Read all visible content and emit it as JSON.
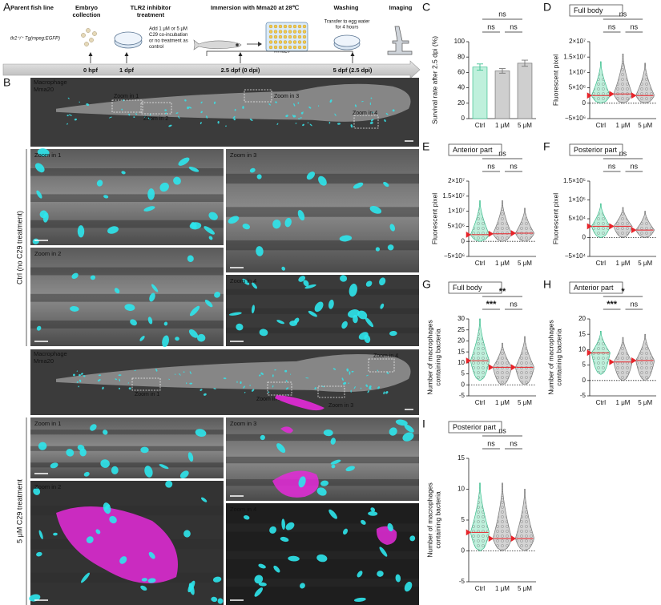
{
  "panel_a": {
    "letter": "A",
    "steps": [
      {
        "title": [
          "Parent fish line"
        ],
        "note": [
          "tlr2⁺/⁺ Tg(mpeg:EGFP)"
        ]
      },
      {
        "title": [
          "Embryo",
          "collection"
        ]
      },
      {
        "title": [
          "TLR2 inhibitor",
          "treatment"
        ],
        "note": [
          "Add 1 μM or 5 μM",
          "C29 co-incubation",
          "or no treatment as",
          "control"
        ]
      },
      {
        "title": [
          "Immersion with Mma20 at 28℃"
        ],
        "note": [
          "• Mma20"
        ]
      },
      {
        "title": [
          "Washing"
        ],
        "note": [
          "Transfer to egg water",
          "for 4 hours"
        ]
      },
      {
        "title": [
          "Imaging"
        ]
      }
    ],
    "timepoints": [
      "0 hpf",
      "1 dpf",
      "2.5 dpf (0 dpi)",
      "5 dpf (2.5 dpi)"
    ]
  },
  "panel_b": {
    "letter": "B",
    "groups": [
      {
        "label": "Ctrl (no C29 treatment)",
        "legend": [
          "Macrophage",
          "Mma20"
        ],
        "overview_zooms": [
          "Zoom in 1",
          "Zoom in 2",
          "Zoom in 3",
          "Zoom in 4"
        ],
        "zooms": [
          "Zoom in 1",
          "Zoom in 3",
          "Zoom in 2",
          "Zoom in 4"
        ]
      },
      {
        "label": "5 μM C29 treatment",
        "legend": [
          "Macrophage",
          "Mma20"
        ],
        "overview_zooms": [
          "Zoom in 1",
          "Zoom in 2",
          "Zoom in 3",
          "Zoom in 4"
        ],
        "zooms": [
          "Zoom in 1",
          "Zoom in 3",
          "Zoom in 2",
          "Zoom in 4"
        ]
      }
    ]
  },
  "chart_data": [
    {
      "type": "bar",
      "letter": "C",
      "y_label": [
        "Survival rate after 2.5 dpi (%)"
      ],
      "categories": [
        "Ctrl",
        "1 μM",
        "5 μM"
      ],
      "values": [
        67,
        62,
        72
      ],
      "errors": [
        4,
        3,
        4
      ],
      "colors": [
        "#bff0dc",
        "#cfcfcf",
        "#cfcfcf"
      ],
      "edge_colors": [
        "#3cbf8f",
        "#777777",
        "#777777"
      ],
      "ylim": [
        0,
        100
      ],
      "yticks": [
        0,
        20,
        40,
        60,
        80,
        100
      ],
      "significance": [
        "ns",
        "ns",
        "ns"
      ]
    },
    {
      "type": "violin",
      "letter": "D",
      "title": "Full body",
      "y_label": [
        "Fluorescent pixel"
      ],
      "categories": [
        "Ctrl",
        "1 μM",
        "5 μM"
      ],
      "values": [
        2500000,
        3000000,
        2500000
      ],
      "min": [
        0,
        0,
        0
      ],
      "max": [
        13500000,
        16000000,
        13000000
      ],
      "colors": [
        "#bff0dc",
        "#d4d4d4",
        "#d4d4d4"
      ],
      "edge_colors": [
        "#3cbf8f",
        "#777777",
        "#777777"
      ],
      "median_color": "#e8242a",
      "ylim": [
        -5000000,
        20000000
      ],
      "yticks": [
        {
          "value": -5000000,
          "label": "−5×10⁶"
        },
        0,
        {
          "value": 5000000,
          "label": "5×10⁶"
        },
        {
          "value": 10000000,
          "label": "1×10⁷"
        },
        {
          "value": 15000000,
          "label": "1.5×10⁷"
        },
        {
          "value": 20000000,
          "label": "2×10⁷"
        }
      ],
      "zero_line": true,
      "significance": [
        "ns",
        "ns",
        "ns"
      ]
    },
    {
      "type": "violin",
      "letter": "E",
      "title": "Anterior part",
      "y_label": [
        "Fluorescent pixel"
      ],
      "categories": [
        "Ctrl",
        "1 μM",
        "5 μM"
      ],
      "values": [
        2200000,
        2500000,
        2700000
      ],
      "min": [
        0,
        0,
        0
      ],
      "max": [
        13500000,
        13500000,
        11000000
      ],
      "colors": [
        "#bff0dc",
        "#d4d4d4",
        "#d4d4d4"
      ],
      "edge_colors": [
        "#3cbf8f",
        "#777777",
        "#777777"
      ],
      "median_color": "#e8242a",
      "ylim": [
        -5000000,
        20000000
      ],
      "yticks": [
        {
          "value": -5000000,
          "label": "−5×10⁶"
        },
        0,
        {
          "value": 5000000,
          "label": "5×10⁶"
        },
        {
          "value": 10000000,
          "label": "1×10⁷"
        },
        {
          "value": 15000000,
          "label": "1.5×10⁷"
        },
        {
          "value": 20000000,
          "label": "2×10⁷"
        }
      ],
      "zero_line": true,
      "significance": [
        "ns",
        "ns",
        "ns"
      ]
    },
    {
      "type": "violin",
      "letter": "F",
      "title": "Posterior part",
      "y_label": [
        "Fluorescent pixel"
      ],
      "categories": [
        "Ctrl",
        "1 μM",
        "5 μM"
      ],
      "values": [
        30000,
        30000,
        20000
      ],
      "min": [
        0,
        0,
        0
      ],
      "max": [
        90000,
        80000,
        70000
      ],
      "colors": [
        "#bff0dc",
        "#d4d4d4",
        "#d4d4d4"
      ],
      "edge_colors": [
        "#3cbf8f",
        "#777777",
        "#777777"
      ],
      "median_color": "#e8242a",
      "ylim": [
        -50000,
        150000
      ],
      "yticks": [
        {
          "value": -50000,
          "label": "−5×10⁴"
        },
        0,
        {
          "value": 50000,
          "label": "5×10⁴"
        },
        {
          "value": 100000,
          "label": "1×10⁵"
        },
        {
          "value": 150000,
          "label": "1.5×10⁵"
        }
      ],
      "zero_line": true,
      "significance": [
        "ns",
        "ns",
        "ns"
      ]
    },
    {
      "type": "violin",
      "letter": "G",
      "title": "Full body",
      "y_label": [
        "Number of macrophages",
        "containing bacteria"
      ],
      "categories": [
        "Ctrl",
        "1 μM",
        "5 μM"
      ],
      "values": [
        11,
        8,
        8
      ],
      "min": [
        2,
        0,
        0
      ],
      "max": [
        30,
        19,
        22
      ],
      "colors": [
        "#bff0dc",
        "#d4d4d4",
        "#d4d4d4"
      ],
      "edge_colors": [
        "#3cbf8f",
        "#777777",
        "#777777"
      ],
      "median_color": "#e8242a",
      "ylim": [
        -5,
        30
      ],
      "yticks": [
        -5,
        0,
        5,
        10,
        15,
        20,
        25,
        30
      ],
      "zero_line": true,
      "significance": [
        "***",
        "ns",
        "**"
      ]
    },
    {
      "type": "violin",
      "letter": "H",
      "title": "Anterior part",
      "y_label": [
        "Number of macrophages",
        "containing bacteria"
      ],
      "categories": [
        "Ctrl",
        "1 μM",
        "5 μM"
      ],
      "values": [
        9,
        6,
        6.5
      ],
      "min": [
        2,
        0,
        0
      ],
      "max": [
        16,
        14,
        15
      ],
      "colors": [
        "#bff0dc",
        "#d4d4d4",
        "#d4d4d4"
      ],
      "edge_colors": [
        "#3cbf8f",
        "#777777",
        "#777777"
      ],
      "median_color": "#e8242a",
      "ylim": [
        -5,
        20
      ],
      "yticks": [
        -5,
        0,
        5,
        10,
        15,
        20
      ],
      "zero_line": true,
      "significance": [
        "***",
        "ns",
        "*"
      ]
    },
    {
      "type": "violin",
      "letter": "I",
      "title": "Posterior part",
      "y_label": [
        "Number of macrophages",
        "containing bacteria"
      ],
      "categories": [
        "Ctrl",
        "1 μM",
        "5 μM"
      ],
      "values": [
        3,
        2,
        2
      ],
      "min": [
        0,
        0,
        0
      ],
      "max": [
        11,
        11,
        10
      ],
      "colors": [
        "#bff0dc",
        "#d4d4d4",
        "#d4d4d4"
      ],
      "edge_colors": [
        "#3cbf8f",
        "#777777",
        "#777777"
      ],
      "median_color": "#e8242a",
      "ylim": [
        -5,
        15
      ],
      "yticks": [
        -5,
        0,
        5,
        10,
        15
      ],
      "zero_line": true,
      "significance": [
        "ns",
        "ns",
        "ns"
      ]
    }
  ]
}
